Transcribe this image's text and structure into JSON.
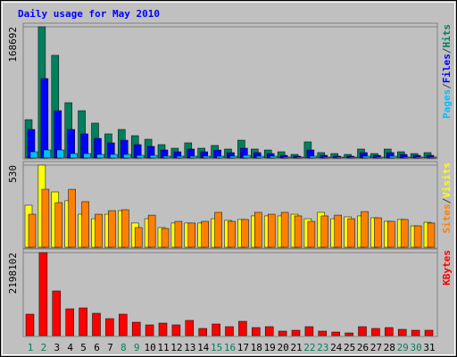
{
  "chart_data": {
    "type": "bar",
    "title": "Daily usage for May 2010",
    "legend_separator": "/",
    "categories": [
      "1",
      "2",
      "3",
      "4",
      "5",
      "6",
      "7",
      "8",
      "9",
      "10",
      "11",
      "12",
      "13",
      "14",
      "15",
      "16",
      "17",
      "18",
      "19",
      "20",
      "21",
      "22",
      "23",
      "24",
      "25",
      "26",
      "27",
      "28",
      "29",
      "30",
      "31"
    ],
    "category_colors": [
      "#00805c",
      "#00805c",
      "#000000",
      "#000000",
      "#000000",
      "#000000",
      "#000000",
      "#00805c",
      "#00805c",
      "#000000",
      "#000000",
      "#000000",
      "#000000",
      "#000000",
      "#00805c",
      "#00805c",
      "#000000",
      "#000000",
      "#000000",
      "#000000",
      "#000000",
      "#00805c",
      "#00805c",
      "#000000",
      "#000000",
      "#000000",
      "#000000",
      "#000000",
      "#00805c",
      "#00805c",
      "#000000"
    ],
    "panels": [
      {
        "ylim": [
          0,
          168692
        ],
        "yticks": [
          168692
        ],
        "series": [
          {
            "name": "Hits",
            "color": "#00805c",
            "values": [
              49300,
              168692,
              132000,
              71100,
              60800,
              44800,
              31000,
              36700,
              28700,
              24100,
              17200,
              12600,
              19500,
              12600,
              16100,
              11500,
              22900,
              11500,
              10300,
              8000,
              4600,
              20700,
              6900,
              5700,
              4600,
              11500,
              5700,
              11500,
              8000,
              5700,
              6900
            ]
          },
          {
            "name": "Files",
            "color": "#0000ff",
            "values": [
              36700,
              102100,
              60800,
              36700,
              31000,
              25200,
              19500,
              22900,
              17200,
              14900,
              10300,
              8000,
              11500,
              8000,
              10300,
              6900,
              12600,
              6900,
              5700,
              3400,
              2300,
              10300,
              3400,
              2300,
              2300,
              6900,
              3400,
              6900,
              4600,
              3400,
              3400
            ]
          },
          {
            "name": "Pages",
            "color": "#00c0ff",
            "values": [
              8000,
              10300,
              10300,
              5700,
              5700,
              4600,
              4600,
              4600,
              3400,
              3400,
              2300,
              2300,
              2300,
              2300,
              2300,
              2300,
              3400,
              2300,
              2300,
              1200,
              1200,
              2300,
              1200,
              1200,
              1200,
              2300,
              1200,
              2300,
              1200,
              1200,
              1200
            ]
          }
        ]
      },
      {
        "ylim": [
          0,
          530
        ],
        "yticks": [
          530
        ],
        "series": [
          {
            "name": "Visits",
            "color": "#ffff00",
            "values": [
              271,
              530,
              357,
              300,
              213,
              184,
              213,
              236,
              156,
              184,
              127,
              156,
              156,
              156,
              184,
              173,
              179,
              202,
              202,
              202,
              213,
              184,
              225,
              184,
              196,
              202,
              190,
              167,
              179,
              138,
              161
            ]
          },
          {
            "name": "Sites",
            "color": "#ff8000",
            "values": [
              213,
              374,
              288,
              374,
              294,
              213,
              236,
              242,
              127,
              207,
              121,
              167,
              156,
              167,
              225,
              167,
              179,
              225,
              213,
              225,
              202,
              167,
              202,
              207,
              184,
              230,
              190,
              167,
              179,
              138,
              156
            ]
          }
        ]
      },
      {
        "ylim": [
          0,
          2198102
        ],
        "yticks": [
          2198102
        ],
        "series": [
          {
            "name": "KBytes",
            "color": "#ff0000",
            "values": [
              567000,
              2198102,
              1181800,
              709000,
              732700,
              590900,
              449100,
              567300,
              354500,
              283600,
              330900,
              283600,
              401800,
              189100,
              307300,
              236400,
              378200,
              212700,
              236400,
              118200,
              141800,
              236400,
              118200,
              94600,
              70900,
              236400,
              189100,
              212700,
              165400,
              141800,
              141800
            ]
          }
        ]
      }
    ]
  }
}
